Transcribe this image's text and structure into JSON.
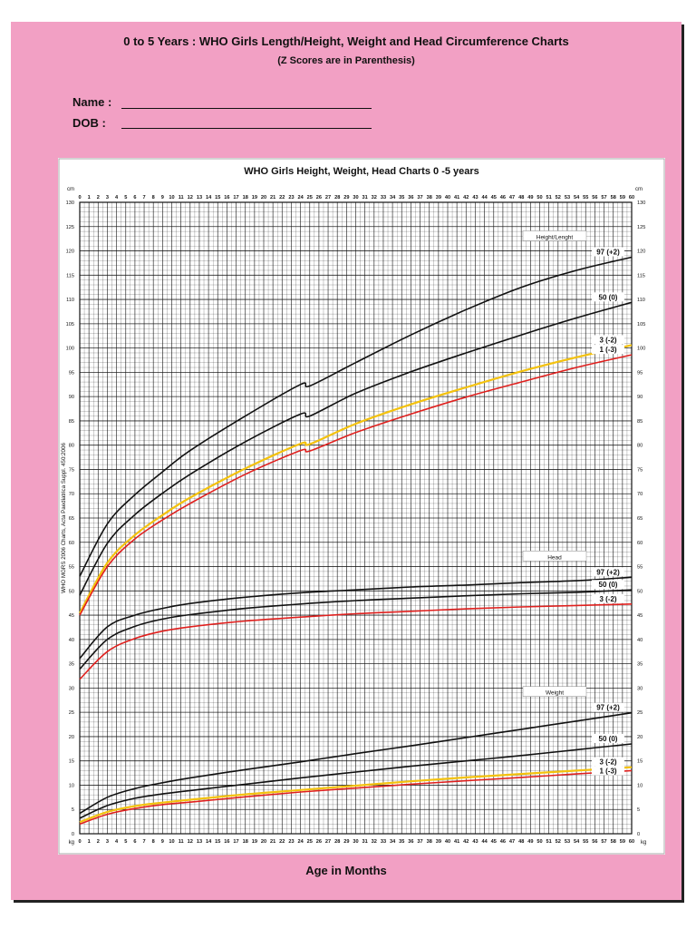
{
  "page": {
    "title": "0 to 5 Years : WHO Girls Length/Height, Weight and Head Circumference Charts",
    "subtitle": "(Z Scores are in Parenthesis)",
    "fields": [
      {
        "label": "Name :",
        "value": ""
      },
      {
        "label": "DOB   :",
        "value": ""
      }
    ],
    "x_axis_label": "Age in Months"
  },
  "colors": {
    "background": "#f2a0c4",
    "panel": "#ffffff",
    "grid": "#111111",
    "curve_black": "#111111",
    "curve_red": "#e0201e",
    "curve_yellow": "#f4c20d"
  },
  "chart_data": {
    "type": "line",
    "title": "WHO Girls Height, Weight, Head Charts 0 -5 years",
    "left_unit_top": "cm",
    "right_unit_top": "cm",
    "left_unit_bottom": "kg",
    "right_unit_bottom": "kg",
    "side_note": "WHO MGRS 2006 Charts, Acta Paediatrica Suppl. 450:2006",
    "xlim": [
      0,
      60
    ],
    "ylim": [
      0,
      130
    ],
    "x_ticks": [
      0,
      1,
      2,
      3,
      4,
      5,
      6,
      7,
      8,
      9,
      10,
      11,
      12,
      13,
      14,
      15,
      16,
      17,
      18,
      19,
      20,
      21,
      22,
      23,
      24,
      25,
      26,
      27,
      28,
      29,
      30,
      31,
      32,
      33,
      34,
      35,
      36,
      37,
      38,
      39,
      40,
      41,
      42,
      43,
      44,
      45,
      46,
      47,
      48,
      49,
      50,
      51,
      52,
      53,
      54,
      55,
      56,
      57,
      58,
      59,
      60
    ],
    "y_ticks": [
      0,
      5,
      10,
      15,
      20,
      25,
      30,
      35,
      40,
      45,
      50,
      55,
      60,
      65,
      70,
      75,
      80,
      85,
      90,
      95,
      100,
      105,
      110,
      115,
      120,
      125,
      130
    ],
    "grid": true,
    "groups": [
      {
        "name": "Height/Lenght",
        "series": [
          {
            "name": "97 (+2)",
            "color": "black",
            "x": [
              0,
              3,
              6,
              9,
              12,
              18,
              24,
              25,
              30,
              36,
              42,
              48,
              54,
              60
            ],
            "y": [
              53.0,
              63.8,
              69.8,
              74.5,
              78.9,
              86.0,
              92.5,
              92.2,
              97.0,
              102.7,
              107.9,
              112.5,
              116.0,
              118.7
            ]
          },
          {
            "name": "50 (0)",
            "color": "black",
            "x": [
              0,
              3,
              6,
              9,
              12,
              18,
              24,
              25,
              30,
              36,
              42,
              48,
              54,
              60
            ],
            "y": [
              49.1,
              59.8,
              65.7,
              70.1,
              74.0,
              80.7,
              86.4,
              86.0,
              90.7,
              95.1,
              99.0,
              102.7,
              106.2,
              109.4
            ]
          },
          {
            "name": "3 (-2)",
            "color": "yellow",
            "x": [
              0,
              3,
              6,
              9,
              12,
              18,
              24,
              25,
              30,
              36,
              42,
              48,
              54,
              60
            ],
            "y": [
              45.4,
              55.8,
              61.5,
              65.6,
              69.2,
              75.2,
              80.3,
              80.2,
              84.4,
              88.4,
              91.9,
              95.2,
              98.1,
              100.6
            ]
          },
          {
            "name": "1 (-3)",
            "color": "red",
            "x": [
              0,
              3,
              6,
              9,
              12,
              18,
              24,
              25,
              30,
              36,
              42,
              48,
              54,
              60
            ],
            "y": [
              45.0,
              55.0,
              60.7,
              64.6,
              68.0,
              74.0,
              78.9,
              78.8,
              82.6,
              86.4,
              89.9,
              93.0,
              96.0,
              98.6
            ]
          }
        ]
      },
      {
        "name": "Head",
        "series": [
          {
            "name": "97 (+2)",
            "color": "black",
            "x": [
              0,
              3,
              6,
              9,
              12,
              18,
              24,
              30,
              36,
              42,
              48,
              54,
              60
            ],
            "y": [
              36.1,
              42.6,
              45.0,
              46.4,
              47.4,
              48.7,
              49.6,
              50.2,
              50.8,
              51.2,
              51.7,
              52.1,
              52.8
            ]
          },
          {
            "name": "50 (0)",
            "color": "black",
            "x": [
              0,
              3,
              6,
              9,
              12,
              18,
              24,
              30,
              36,
              42,
              48,
              54,
              60
            ],
            "y": [
              33.9,
              40.0,
              42.7,
              44.2,
              45.1,
              46.4,
              47.3,
              48.0,
              48.5,
              49.0,
              49.4,
              49.7,
              50.2
            ]
          },
          {
            "name": "3 (-2)",
            "color": "red",
            "x": [
              0,
              3,
              6,
              9,
              12,
              18,
              24,
              30,
              36,
              42,
              48,
              54,
              60
            ],
            "y": [
              31.8,
              37.5,
              40.2,
              41.7,
              42.6,
              43.8,
              44.6,
              45.3,
              45.8,
              46.3,
              46.7,
              47.0,
              47.3
            ]
          }
        ]
      },
      {
        "name": "Weight",
        "series": [
          {
            "name": "97 (+2)",
            "color": "black",
            "x": [
              0,
              3,
              6,
              9,
              12,
              18,
              24,
              30,
              36,
              42,
              48,
              54,
              60
            ],
            "y": [
              4.2,
              7.5,
              9.3,
              10.5,
              11.5,
              13.2,
              14.8,
              16.5,
              18.1,
              19.8,
              21.5,
              23.2,
              24.9
            ]
          },
          {
            "name": "50 (0)",
            "color": "black",
            "x": [
              0,
              3,
              6,
              9,
              12,
              18,
              24,
              30,
              36,
              42,
              48,
              54,
              60
            ],
            "y": [
              3.2,
              5.8,
              7.3,
              8.2,
              8.9,
              10.2,
              11.5,
              12.7,
              13.9,
              15.0,
              16.1,
              17.3,
              18.5
            ]
          },
          {
            "name": "3 (-2)",
            "color": "yellow",
            "x": [
              0,
              3,
              6,
              9,
              12,
              18,
              24,
              30,
              36,
              42,
              48,
              54,
              60
            ],
            "y": [
              2.4,
              4.5,
              5.7,
              6.4,
              7.0,
              8.1,
              9.0,
              9.9,
              10.8,
              11.6,
              12.3,
              13.0,
              13.7
            ]
          },
          {
            "name": "1 (-3)",
            "color": "red",
            "x": [
              0,
              3,
              6,
              9,
              12,
              18,
              24,
              30,
              36,
              42,
              48,
              54,
              60
            ],
            "y": [
              2.0,
              4.0,
              5.2,
              6.0,
              6.5,
              7.6,
              8.6,
              9.4,
              10.2,
              10.9,
              11.6,
              12.3,
              13.0
            ]
          }
        ]
      }
    ]
  }
}
